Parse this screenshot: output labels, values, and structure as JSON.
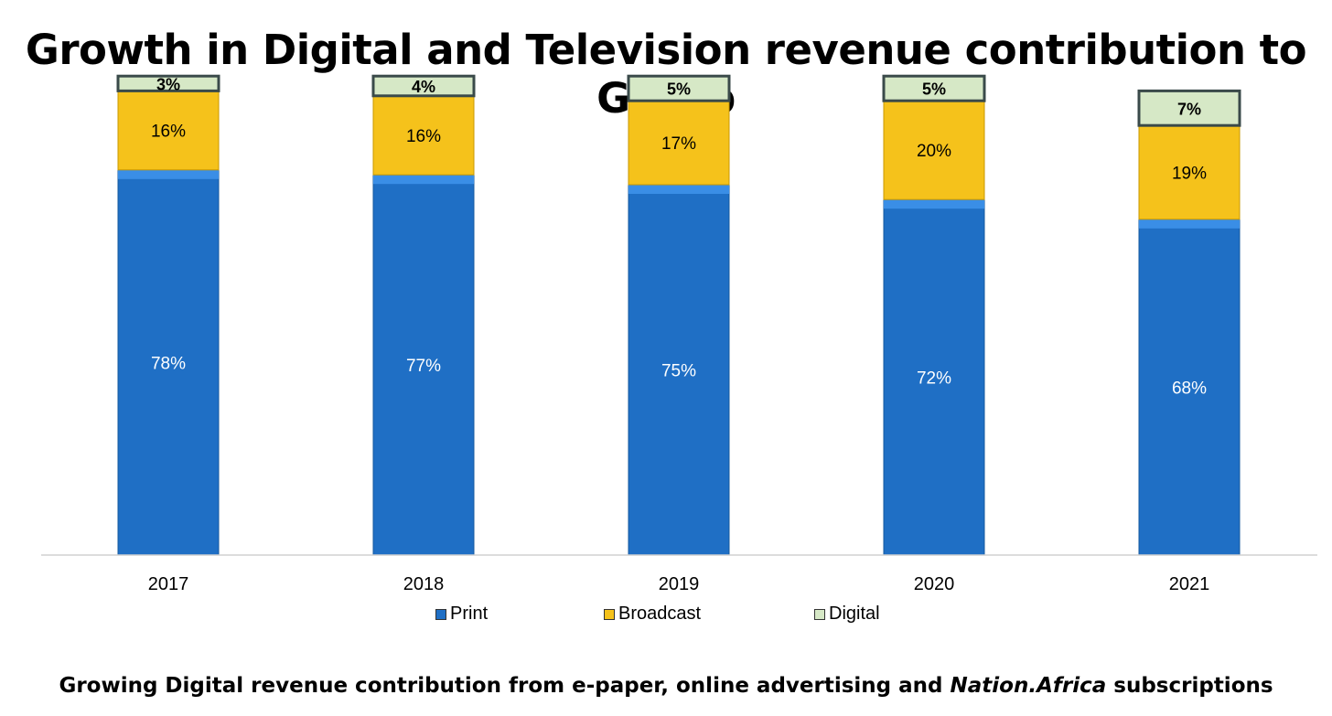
{
  "chart_data": {
    "type": "bar",
    "stacked": true,
    "title": "Growth in Digital and Television revenue contribution to Group",
    "categories": [
      "2017",
      "2018",
      "2019",
      "2020",
      "2021"
    ],
    "series": [
      {
        "name": "Print",
        "values": [
          78,
          77,
          75,
          72,
          68
        ],
        "labels": [
          "78%",
          "77%",
          "75%",
          "72%",
          "68%"
        ],
        "color": "#1f6fc5"
      },
      {
        "name": "Broadcast",
        "values": [
          16,
          16,
          17,
          20,
          19
        ],
        "labels": [
          "16%",
          "16%",
          "17%",
          "20%",
          "19%"
        ],
        "color": "#f5c21b"
      },
      {
        "name": "Digital",
        "values": [
          3,
          4,
          5,
          5,
          7
        ],
        "labels": [
          "3%",
          "4%",
          "5%",
          "5%",
          "7%"
        ],
        "color": "#d6e8c6"
      }
    ],
    "ylim": [
      0,
      100
    ],
    "grid": false,
    "legend_position": "bottom"
  },
  "footnote": {
    "before": "Growing Digital revenue contribution from e-paper, online advertising and ",
    "emphasis": "Nation.Africa",
    "after": " subscriptions"
  }
}
